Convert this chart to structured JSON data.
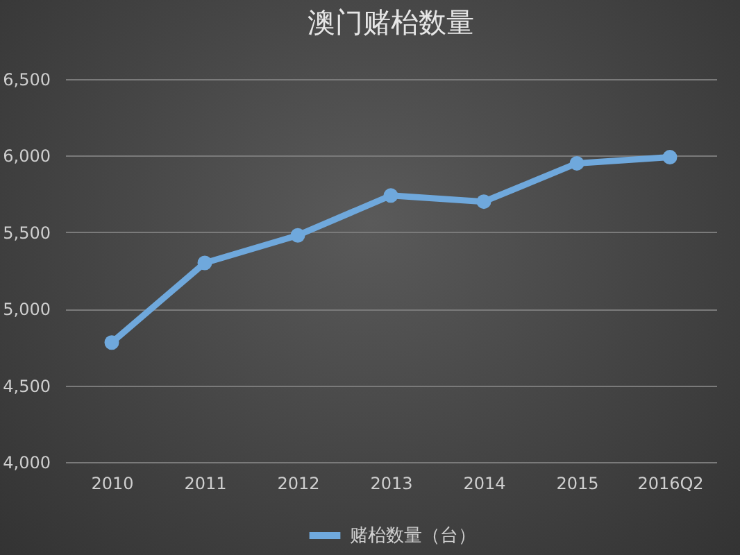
{
  "chart_data": {
    "type": "line",
    "title": "澳门赌枱数量",
    "categories": [
      "2010",
      "2011",
      "2012",
      "2013",
      "2014",
      "2015",
      "2016Q2"
    ],
    "series": [
      {
        "name": "赌枱数量（台）",
        "color": "#6fa8dc",
        "values": [
          4780,
          5300,
          5480,
          5740,
          5700,
          5950,
          5990
        ]
      }
    ],
    "ylim": [
      4000,
      6500
    ],
    "yticks": [
      {
        "value": 4000,
        "label": "4,000"
      },
      {
        "value": 4500,
        "label": "4,500"
      },
      {
        "value": 5000,
        "label": "5,000"
      },
      {
        "value": 5500,
        "label": "5,500"
      },
      {
        "value": 6000,
        "label": "6,000"
      },
      {
        "value": 6500,
        "label": "6,500"
      }
    ],
    "grid": "y",
    "legend": "bottom",
    "marker": "circle"
  }
}
